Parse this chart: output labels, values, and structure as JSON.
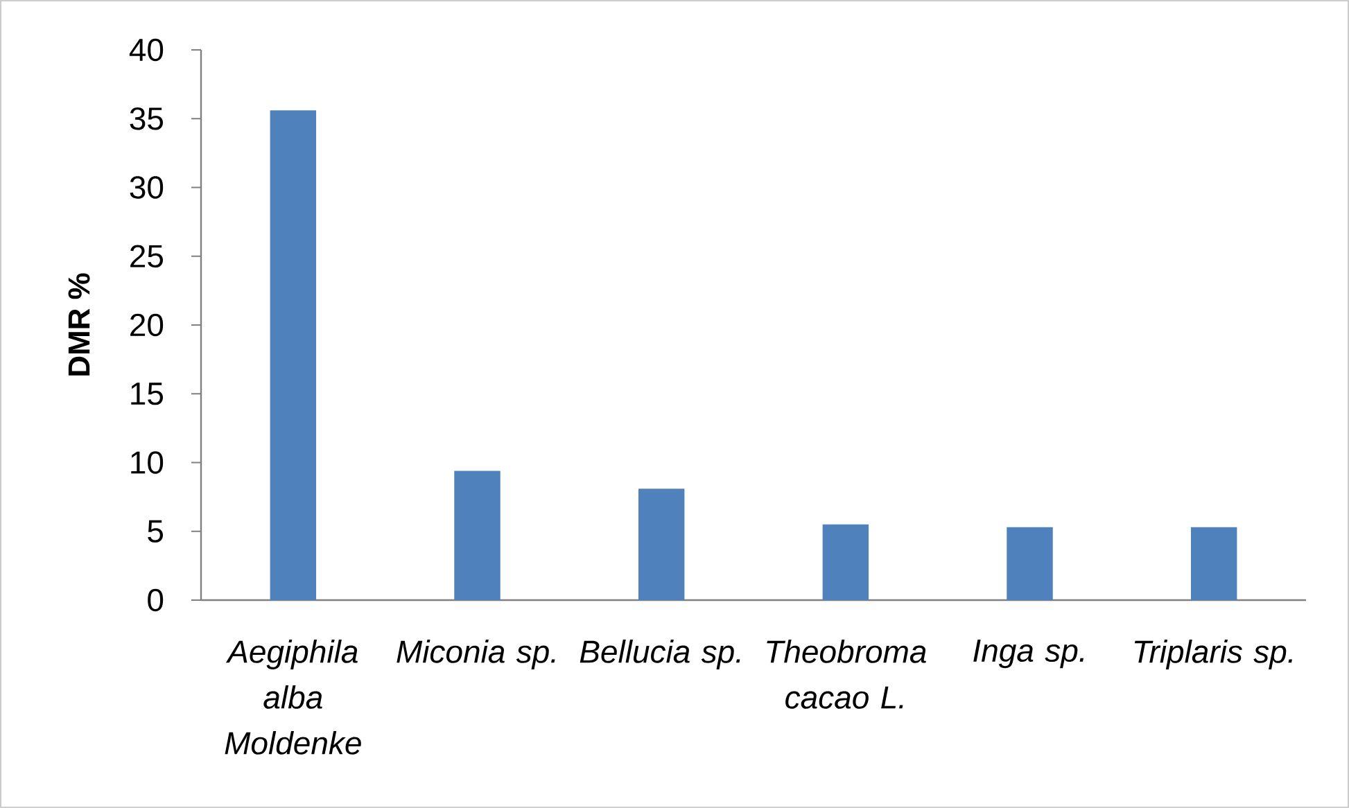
{
  "chart_data": {
    "type": "bar",
    "ylabel": "DMR %",
    "categories": [
      "Aegiphila alba Moldenke",
      "Miconia sp.",
      "Bellucia sp.",
      "Theobroma cacao L.",
      "Inga sp.",
      "Triplaris sp."
    ],
    "values": [
      35.6,
      9.4,
      8.1,
      5.5,
      5.3,
      5.3
    ],
    "color": "#4f81bd",
    "ylim": [
      0,
      40
    ],
    "yticks": [
      0,
      5,
      10,
      15,
      20,
      25,
      30,
      35,
      40
    ]
  }
}
